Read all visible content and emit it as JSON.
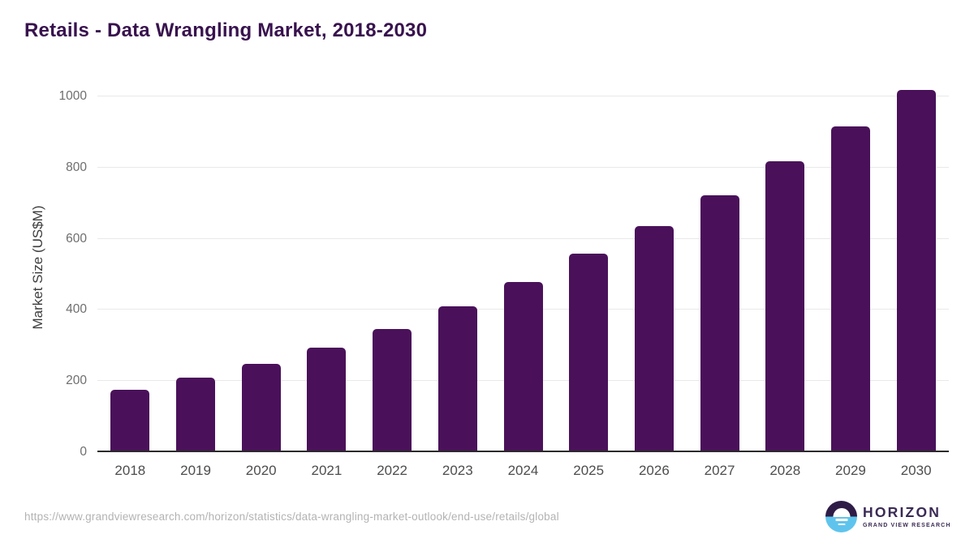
{
  "chart_data": {
    "type": "bar",
    "title": "Retails - Data Wrangling Market, 2018-2030",
    "categories": [
      "2018",
      "2019",
      "2020",
      "2021",
      "2022",
      "2023",
      "2024",
      "2025",
      "2026",
      "2027",
      "2028",
      "2029",
      "2030"
    ],
    "values": [
      175,
      209,
      249,
      294,
      346,
      411,
      479,
      557,
      635,
      722,
      817,
      915,
      1017
    ],
    "xlabel": "",
    "ylabel": "Market Size (US$M)",
    "ylim": [
      0,
      1043
    ],
    "yticks": [
      0,
      200,
      400,
      600,
      800,
      1000
    ],
    "grid": true,
    "legend_position": "none",
    "bar_color": "#4a115a"
  },
  "footer": {
    "source_url": "https://www.grandviewresearch.com/horizon/statistics/data-wrangling-market-outlook/end-use/retails/global"
  },
  "logo": {
    "brand": "HORIZON",
    "tagline": "GRAND VIEW RESEARCH",
    "mark_top_color": "#2e1c47",
    "mark_bottom_color": "#5fc4ed",
    "text_color": "#3a2a55"
  },
  "colors": {
    "title": "#38124e",
    "bar": "#4a115a",
    "gridline": "#e9e9e9",
    "axis_line": "#2b2b2b",
    "x_tick": "#4d4d4d",
    "y_tick": "#6e6e6e",
    "axis_title": "#3d3d3d",
    "source_text": "#b3b3b3"
  }
}
